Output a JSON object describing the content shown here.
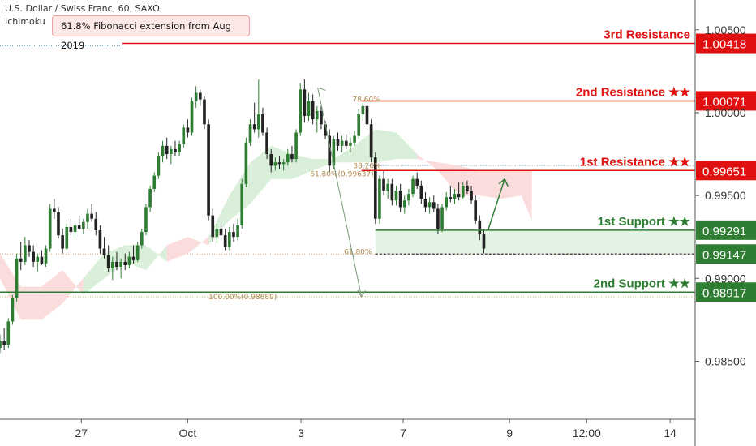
{
  "header": {
    "symbol": "U.S. Dollar / Swiss Franc, 60, SAXO",
    "indicator": "Ichimoku"
  },
  "callout": "61.8% Fibonacci extension from Aug 2019",
  "colors": {
    "resistance": "#e01010",
    "support": "#2e7d32",
    "bull": "#2e7d32",
    "bear": "#222222",
    "cloud_bull": "#d9efd9",
    "cloud_bear": "#fbdcdc",
    "fib": "#b08850"
  },
  "chart_data": {
    "type": "candlestick",
    "instrument": "U.S. Dollar / Swiss Franc",
    "timeframe": "60",
    "source": "SAXO",
    "y_ticks": [
      "1.00500",
      "1.00000",
      "0.99500",
      "0.99000",
      "0.98500"
    ],
    "y_range": [
      0.9815,
      1.0068
    ],
    "x_ticks": [
      {
        "label": "27",
        "t": 0.117
      },
      {
        "label": "Oct",
        "t": 0.27
      },
      {
        "label": "3",
        "t": 0.433
      },
      {
        "label": "7",
        "t": 0.58
      },
      {
        "label": "9",
        "t": 0.733
      },
      {
        "label": "12:00",
        "t": 0.844
      },
      {
        "label": "14",
        "t": 0.964
      }
    ],
    "levels": [
      {
        "name": "3rd Resistance",
        "value": 1.00418,
        "price_label": "1.00418",
        "kind": "resistance",
        "x_start": 0.176
      },
      {
        "name": "2nd Resistance ★★",
        "value": 1.00071,
        "price_label": "1.00071",
        "kind": "resistance",
        "x_start": 0.52
      },
      {
        "name": "1st Resistance ★★",
        "value": 0.99651,
        "price_label": "0.99651",
        "kind": "resistance",
        "x_start": 0.52
      },
      {
        "name": "1st Support ★★",
        "value": 0.99291,
        "price_label": "0.99291",
        "kind": "support",
        "x_start": 0.54
      },
      {
        "name": "",
        "value": 0.99147,
        "price_label": "0.99147",
        "kind": "support-dashed",
        "x_start": 0.54
      },
      {
        "name": "2nd Support ★★",
        "value": 0.98917,
        "price_label": "0.98917",
        "kind": "support",
        "x_start": 0.0
      }
    ],
    "fib_labels": [
      {
        "text": "78.60%",
        "x": 0.507,
        "y": 1.0008
      },
      {
        "text": "38.20%",
        "x": 0.508,
        "y": 0.9968
      },
      {
        "text": "61.80%(0.99637)",
        "x": 0.446,
        "y": 0.9963
      },
      {
        "text": "61.80%",
        "x": 0.495,
        "y": 0.9916
      },
      {
        "text": "100.00%(0.98889)",
        "x": 0.3,
        "y": 0.98889
      }
    ],
    "candles": [
      {
        "t": 0.0,
        "o": 0.9858,
        "h": 0.9866,
        "l": 0.9855,
        "c": 0.9862
      },
      {
        "t": 0.006,
        "o": 0.9862,
        "h": 0.987,
        "l": 0.9857,
        "c": 0.986
      },
      {
        "t": 0.012,
        "o": 0.986,
        "h": 0.9876,
        "l": 0.9858,
        "c": 0.9874
      },
      {
        "t": 0.018,
        "o": 0.9874,
        "h": 0.989,
        "l": 0.9872,
        "c": 0.9888
      },
      {
        "t": 0.024,
        "o": 0.9888,
        "h": 0.9915,
        "l": 0.9886,
        "c": 0.9912
      },
      {
        "t": 0.03,
        "o": 0.9912,
        "h": 0.9922,
        "l": 0.9905,
        "c": 0.991
      },
      {
        "t": 0.036,
        "o": 0.991,
        "h": 0.9925,
        "l": 0.9908,
        "c": 0.992
      },
      {
        "t": 0.042,
        "o": 0.992,
        "h": 0.9923,
        "l": 0.9913,
        "c": 0.9916
      },
      {
        "t": 0.048,
        "o": 0.9916,
        "h": 0.992,
        "l": 0.9907,
        "c": 0.991
      },
      {
        "t": 0.054,
        "o": 0.991,
        "h": 0.9915,
        "l": 0.9904,
        "c": 0.9913
      },
      {
        "t": 0.06,
        "o": 0.9913,
        "h": 0.9917,
        "l": 0.9908,
        "c": 0.9909
      },
      {
        "t": 0.066,
        "o": 0.9909,
        "h": 0.992,
        "l": 0.9907,
        "c": 0.9918
      },
      {
        "t": 0.072,
        "o": 0.9918,
        "h": 0.9945,
        "l": 0.9916,
        "c": 0.9942
      },
      {
        "t": 0.078,
        "o": 0.9942,
        "h": 0.9948,
        "l": 0.9936,
        "c": 0.994
      },
      {
        "t": 0.084,
        "o": 0.994,
        "h": 0.9943,
        "l": 0.9924,
        "c": 0.9926
      },
      {
        "t": 0.09,
        "o": 0.9926,
        "h": 0.993,
        "l": 0.9915,
        "c": 0.9918
      },
      {
        "t": 0.096,
        "o": 0.9918,
        "h": 0.9933,
        "l": 0.9917,
        "c": 0.9931
      },
      {
        "t": 0.102,
        "o": 0.9931,
        "h": 0.9936,
        "l": 0.9926,
        "c": 0.9928
      },
      {
        "t": 0.108,
        "o": 0.9928,
        "h": 0.9933,
        "l": 0.9924,
        "c": 0.9932
      },
      {
        "t": 0.114,
        "o": 0.9932,
        "h": 0.9938,
        "l": 0.9929,
        "c": 0.993
      },
      {
        "t": 0.12,
        "o": 0.993,
        "h": 0.9936,
        "l": 0.9927,
        "c": 0.9934
      },
      {
        "t": 0.126,
        "o": 0.9934,
        "h": 0.9942,
        "l": 0.993,
        "c": 0.9939
      },
      {
        "t": 0.132,
        "o": 0.9939,
        "h": 0.9945,
        "l": 0.9934,
        "c": 0.9936
      },
      {
        "t": 0.138,
        "o": 0.9936,
        "h": 0.994,
        "l": 0.9926,
        "c": 0.9929
      },
      {
        "t": 0.144,
        "o": 0.9929,
        "h": 0.9932,
        "l": 0.9915,
        "c": 0.9918
      },
      {
        "t": 0.15,
        "o": 0.9918,
        "h": 0.9925,
        "l": 0.9912,
        "c": 0.9914
      },
      {
        "t": 0.156,
        "o": 0.9914,
        "h": 0.992,
        "l": 0.9904,
        "c": 0.9906
      },
      {
        "t": 0.162,
        "o": 0.9906,
        "h": 0.9913,
        "l": 0.9899,
        "c": 0.991
      },
      {
        "t": 0.168,
        "o": 0.991,
        "h": 0.9916,
        "l": 0.9905,
        "c": 0.9907
      },
      {
        "t": 0.174,
        "o": 0.9907,
        "h": 0.9912,
        "l": 0.99,
        "c": 0.991
      },
      {
        "t": 0.18,
        "o": 0.991,
        "h": 0.9915,
        "l": 0.9905,
        "c": 0.9908
      },
      {
        "t": 0.186,
        "o": 0.9908,
        "h": 0.9916,
        "l": 0.9906,
        "c": 0.9913
      },
      {
        "t": 0.192,
        "o": 0.9913,
        "h": 0.992,
        "l": 0.9909,
        "c": 0.9911
      },
      {
        "t": 0.198,
        "o": 0.9911,
        "h": 0.9922,
        "l": 0.991,
        "c": 0.992
      },
      {
        "t": 0.204,
        "o": 0.992,
        "h": 0.993,
        "l": 0.9918,
        "c": 0.9928
      },
      {
        "t": 0.21,
        "o": 0.9928,
        "h": 0.9945,
        "l": 0.9926,
        "c": 0.9943
      },
      {
        "t": 0.216,
        "o": 0.9943,
        "h": 0.9956,
        "l": 0.994,
        "c": 0.9954
      },
      {
        "t": 0.222,
        "o": 0.9954,
        "h": 0.9964,
        "l": 0.9952,
        "c": 0.9962
      },
      {
        "t": 0.228,
        "o": 0.9962,
        "h": 0.9976,
        "l": 0.996,
        "c": 0.9974
      },
      {
        "t": 0.234,
        "o": 0.9974,
        "h": 0.9983,
        "l": 0.997,
        "c": 0.998
      },
      {
        "t": 0.24,
        "o": 0.998,
        "h": 0.9985,
        "l": 0.9972,
        "c": 0.9975
      },
      {
        "t": 0.246,
        "o": 0.9975,
        "h": 0.998,
        "l": 0.9969,
        "c": 0.9978
      },
      {
        "t": 0.252,
        "o": 0.9978,
        "h": 0.9983,
        "l": 0.9974,
        "c": 0.9976
      },
      {
        "t": 0.258,
        "o": 0.9976,
        "h": 0.9983,
        "l": 0.9974,
        "c": 0.9981
      },
      {
        "t": 0.264,
        "o": 0.9981,
        "h": 0.9993,
        "l": 0.9979,
        "c": 0.9991
      },
      {
        "t": 0.27,
        "o": 0.9991,
        "h": 0.9996,
        "l": 0.9985,
        "c": 0.9988
      },
      {
        "t": 0.276,
        "o": 0.9988,
        "h": 1.0009,
        "l": 0.9986,
        "c": 1.0007
      },
      {
        "t": 0.282,
        "o": 1.0007,
        "h": 1.0016,
        "l": 1.0003,
        "c": 1.0012
      },
      {
        "t": 0.288,
        "o": 1.0012,
        "h": 1.0014,
        "l": 1.0004,
        "c": 1.0008
      },
      {
        "t": 0.294,
        "o": 1.0008,
        "h": 1.001,
        "l": 0.999,
        "c": 0.9993
      },
      {
        "t": 0.3,
        "o": 0.9993,
        "h": 0.9996,
        "l": 0.9935,
        "c": 0.9938
      },
      {
        "t": 0.306,
        "o": 0.9938,
        "h": 0.9942,
        "l": 0.9922,
        "c": 0.9925
      },
      {
        "t": 0.312,
        "o": 0.9925,
        "h": 0.9933,
        "l": 0.9921,
        "c": 0.993
      },
      {
        "t": 0.318,
        "o": 0.993,
        "h": 0.9934,
        "l": 0.9923,
        "c": 0.9926
      },
      {
        "t": 0.324,
        "o": 0.9926,
        "h": 0.993,
        "l": 0.9917,
        "c": 0.9919
      },
      {
        "t": 0.33,
        "o": 0.9919,
        "h": 0.9931,
        "l": 0.9917,
        "c": 0.9928
      },
      {
        "t": 0.336,
        "o": 0.9928,
        "h": 0.9933,
        "l": 0.9922,
        "c": 0.9925
      },
      {
        "t": 0.342,
        "o": 0.9925,
        "h": 0.9936,
        "l": 0.9923,
        "c": 0.9932
      },
      {
        "t": 0.348,
        "o": 0.9932,
        "h": 0.996,
        "l": 0.993,
        "c": 0.9957
      },
      {
        "t": 0.354,
        "o": 0.9957,
        "h": 0.9985,
        "l": 0.9955,
        "c": 0.9982
      },
      {
        "t": 0.36,
        "o": 0.9982,
        "h": 0.9996,
        "l": 0.998,
        "c": 0.9993
      },
      {
        "t": 0.366,
        "o": 0.9993,
        "h": 1.0006,
        "l": 0.9988,
        "c": 0.999
      },
      {
        "t": 0.372,
        "o": 0.999,
        "h": 1.002,
        "l": 0.9985,
        "c": 0.9999
      },
      {
        "t": 0.378,
        "o": 0.9999,
        "h": 1.0003,
        "l": 0.9986,
        "c": 0.9988
      },
      {
        "t": 0.384,
        "o": 0.9988,
        "h": 0.9991,
        "l": 0.9972,
        "c": 0.9975
      },
      {
        "t": 0.39,
        "o": 0.9975,
        "h": 0.9978,
        "l": 0.9964,
        "c": 0.9968
      },
      {
        "t": 0.396,
        "o": 0.9968,
        "h": 0.9973,
        "l": 0.9965,
        "c": 0.997
      },
      {
        "t": 0.402,
        "o": 0.997,
        "h": 0.9974,
        "l": 0.9966,
        "c": 0.9969
      },
      {
        "t": 0.408,
        "o": 0.9969,
        "h": 0.9972,
        "l": 0.9965,
        "c": 0.997
      },
      {
        "t": 0.414,
        "o": 0.997,
        "h": 0.9978,
        "l": 0.9968,
        "c": 0.9975
      },
      {
        "t": 0.42,
        "o": 0.9975,
        "h": 0.998,
        "l": 0.997,
        "c": 0.9972
      },
      {
        "t": 0.426,
        "o": 0.9972,
        "h": 0.999,
        "l": 0.997,
        "c": 0.9988
      },
      {
        "t": 0.432,
        "o": 0.9988,
        "h": 1.0018,
        "l": 0.9986,
        "c": 1.0014
      },
      {
        "t": 0.438,
        "o": 1.0014,
        "h": 1.002,
        "l": 0.9994,
        "c": 0.9998
      },
      {
        "t": 0.444,
        "o": 0.9998,
        "h": 1.0012,
        "l": 0.9995,
        "c": 1.0007
      },
      {
        "t": 0.45,
        "o": 1.0007,
        "h": 1.0011,
        "l": 0.9993,
        "c": 0.9996
      },
      {
        "t": 0.456,
        "o": 0.9996,
        "h": 1.0004,
        "l": 0.9988,
        "c": 1.0001
      },
      {
        "t": 0.462,
        "o": 1.0001,
        "h": 1.0004,
        "l": 0.999,
        "c": 0.9993
      },
      {
        "t": 0.468,
        "o": 0.9993,
        "h": 0.9995,
        "l": 0.9984,
        "c": 0.9986
      },
      {
        "t": 0.474,
        "o": 0.9986,
        "h": 0.999,
        "l": 0.9964,
        "c": 0.9968
      },
      {
        "t": 0.48,
        "o": 0.9968,
        "h": 0.9986,
        "l": 0.9966,
        "c": 0.9984
      },
      {
        "t": 0.486,
        "o": 0.9984,
        "h": 0.9988,
        "l": 0.9977,
        "c": 0.998
      },
      {
        "t": 0.492,
        "o": 0.998,
        "h": 0.9986,
        "l": 0.9976,
        "c": 0.9983
      },
      {
        "t": 0.498,
        "o": 0.9983,
        "h": 0.9987,
        "l": 0.9978,
        "c": 0.998
      },
      {
        "t": 0.504,
        "o": 0.998,
        "h": 0.9985,
        "l": 0.9976,
        "c": 0.9982
      },
      {
        "t": 0.51,
        "o": 0.9982,
        "h": 0.9989,
        "l": 0.998,
        "c": 0.9986
      },
      {
        "t": 0.516,
        "o": 0.9986,
        "h": 1.0002,
        "l": 0.9984,
        "c": 0.9999
      },
      {
        "t": 0.522,
        "o": 0.9999,
        "h": 1.0006,
        "l": 0.9995,
        "c": 1.0004
      },
      {
        "t": 0.528,
        "o": 1.0004,
        "h": 1.0006,
        "l": 0.999,
        "c": 0.9993
      },
      {
        "t": 0.534,
        "o": 0.9993,
        "h": 0.9996,
        "l": 0.997,
        "c": 0.9973
      },
      {
        "t": 0.54,
        "o": 0.9973,
        "h": 0.9976,
        "l": 0.9933,
        "c": 0.9936
      },
      {
        "t": 0.546,
        "o": 0.9936,
        "h": 0.9962,
        "l": 0.9933,
        "c": 0.996
      },
      {
        "t": 0.552,
        "o": 0.996,
        "h": 0.9965,
        "l": 0.995,
        "c": 0.9953
      },
      {
        "t": 0.558,
        "o": 0.9953,
        "h": 0.996,
        "l": 0.9948,
        "c": 0.9957
      },
      {
        "t": 0.564,
        "o": 0.9957,
        "h": 0.996,
        "l": 0.9944,
        "c": 0.9947
      },
      {
        "t": 0.57,
        "o": 0.9947,
        "h": 0.9956,
        "l": 0.9944,
        "c": 0.9953
      },
      {
        "t": 0.576,
        "o": 0.9953,
        "h": 0.9957,
        "l": 0.994,
        "c": 0.9943
      },
      {
        "t": 0.582,
        "o": 0.9943,
        "h": 0.995,
        "l": 0.9939,
        "c": 0.9947
      },
      {
        "t": 0.588,
        "o": 0.9947,
        "h": 0.9954,
        "l": 0.9944,
        "c": 0.9951
      },
      {
        "t": 0.594,
        "o": 0.9951,
        "h": 0.9962,
        "l": 0.9949,
        "c": 0.996
      },
      {
        "t": 0.6,
        "o": 0.996,
        "h": 0.9964,
        "l": 0.9954,
        "c": 0.9956
      },
      {
        "t": 0.606,
        "o": 0.9956,
        "h": 0.9959,
        "l": 0.9945,
        "c": 0.9948
      },
      {
        "t": 0.612,
        "o": 0.9948,
        "h": 0.9952,
        "l": 0.994,
        "c": 0.9943
      },
      {
        "t": 0.618,
        "o": 0.9943,
        "h": 0.9949,
        "l": 0.9939,
        "c": 0.9946
      },
      {
        "t": 0.624,
        "o": 0.9946,
        "h": 0.995,
        "l": 0.994,
        "c": 0.9942
      },
      {
        "t": 0.63,
        "o": 0.9942,
        "h": 0.9945,
        "l": 0.9927,
        "c": 0.993
      },
      {
        "t": 0.636,
        "o": 0.993,
        "h": 0.9945,
        "l": 0.9928,
        "c": 0.9943
      },
      {
        "t": 0.642,
        "o": 0.9943,
        "h": 0.9952,
        "l": 0.9941,
        "c": 0.9949
      },
      {
        "t": 0.648,
        "o": 0.9949,
        "h": 0.9956,
        "l": 0.9946,
        "c": 0.9948
      },
      {
        "t": 0.654,
        "o": 0.9948,
        "h": 0.9954,
        "l": 0.9945,
        "c": 0.9951
      },
      {
        "t": 0.66,
        "o": 0.9951,
        "h": 0.9958,
        "l": 0.9947,
        "c": 0.9949
      },
      {
        "t": 0.666,
        "o": 0.9949,
        "h": 0.9958,
        "l": 0.9948,
        "c": 0.9956
      },
      {
        "t": 0.672,
        "o": 0.9956,
        "h": 0.9959,
        "l": 0.9951,
        "c": 0.9953
      },
      {
        "t": 0.678,
        "o": 0.9953,
        "h": 0.9956,
        "l": 0.9945,
        "c": 0.9947
      },
      {
        "t": 0.684,
        "o": 0.9947,
        "h": 0.995,
        "l": 0.9933,
        "c": 0.9935
      },
      {
        "t": 0.69,
        "o": 0.9935,
        "h": 0.9938,
        "l": 0.9923,
        "c": 0.9927
      },
      {
        "t": 0.696,
        "o": 0.9927,
        "h": 0.993,
        "l": 0.9915,
        "c": 0.9918
      }
    ],
    "cloud": [
      {
        "t": 0.0,
        "a": 0.99,
        "b": 0.9915
      },
      {
        "t": 0.03,
        "a": 0.9875,
        "b": 0.9895
      },
      {
        "t": 0.06,
        "a": 0.9875,
        "b": 0.9895
      },
      {
        "t": 0.09,
        "a": 0.9885,
        "b": 0.9905
      },
      {
        "t": 0.12,
        "a": 0.99,
        "b": 0.989
      },
      {
        "t": 0.15,
        "a": 0.9915,
        "b": 0.99
      },
      {
        "t": 0.18,
        "a": 0.992,
        "b": 0.991
      },
      {
        "t": 0.21,
        "a": 0.992,
        "b": 0.9905
      },
      {
        "t": 0.24,
        "a": 0.991,
        "b": 0.992
      },
      {
        "t": 0.27,
        "a": 0.9915,
        "b": 0.9925
      },
      {
        "t": 0.3,
        "a": 0.9925,
        "b": 0.992
      },
      {
        "t": 0.33,
        "a": 0.995,
        "b": 0.9935
      },
      {
        "t": 0.36,
        "a": 0.997,
        "b": 0.9945
      },
      {
        "t": 0.39,
        "a": 0.998,
        "b": 0.996
      },
      {
        "t": 0.42,
        "a": 0.9975,
        "b": 0.996
      },
      {
        "t": 0.45,
        "a": 0.9972,
        "b": 0.9965
      },
      {
        "t": 0.48,
        "a": 0.9972,
        "b": 0.997
      },
      {
        "t": 0.51,
        "a": 0.998,
        "b": 0.997
      },
      {
        "t": 0.54,
        "a": 0.999,
        "b": 0.997
      },
      {
        "t": 0.57,
        "a": 0.9988,
        "b": 0.9972
      },
      {
        "t": 0.6,
        "a": 0.9975,
        "b": 0.9972
      },
      {
        "t": 0.63,
        "a": 0.9965,
        "b": 0.997
      },
      {
        "t": 0.66,
        "a": 0.995,
        "b": 0.9968
      },
      {
        "t": 0.69,
        "a": 0.995,
        "b": 0.9965
      },
      {
        "t": 0.72,
        "a": 0.9948,
        "b": 0.9965
      },
      {
        "t": 0.75,
        "a": 0.995,
        "b": 0.9965
      },
      {
        "t": 0.765,
        "a": 0.9935,
        "b": 0.9965
      }
    ],
    "projection": [
      {
        "t": 0.702,
        "v": 0.99291
      },
      {
        "t": 0.726,
        "v": 0.996
      }
    ],
    "swing": [
      {
        "t": 0.457,
        "v": 1.0015
      },
      {
        "t": 0.52,
        "v": 0.98889
      }
    ]
  }
}
